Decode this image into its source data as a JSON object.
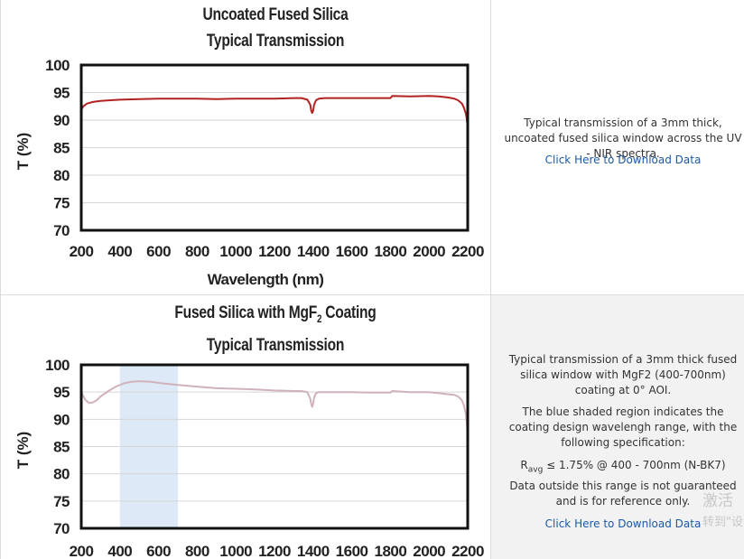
{
  "charts": [
    {
      "title_lines": [
        "Uncoated Fused Silica",
        "Typical Transmission"
      ],
      "description": "Typical transmission of a 3mm thick, uncoated fused silica window across the UV - NIR spectra.",
      "link_label": "Click Here to Download Data"
    },
    {
      "title_main": "Fused Silica with MgF",
      "title_sub": "2",
      "title_tail": " Coating",
      "title_line2": "Typical Transmission",
      "description_1": "Typical transmission of a 3mm thick fused silica window with MgF2 (400-700nm) coating at 0° AOI.",
      "description_2": "The blue shaded region indicates the coating design wavelengh range, with the following specification:",
      "spec_r": "R",
      "spec_sub": "avg",
      "spec_tail": " ≤ 1.75% @ 400 - 700nm (N-BK7)",
      "description_3": "Data outside this range is not guaranteed and is for reference only.",
      "link_label": "Click Here to Download Data"
    }
  ],
  "watermark": {
    "line1": "激活",
    "line2": "转到\"设"
  },
  "chart_data": [
    {
      "type": "line",
      "title": "Uncoated Fused Silica Typical Transmission",
      "xlabel": "Wavelength (nm)",
      "ylabel": "T (%)",
      "xlim": [
        200,
        2200
      ],
      "ylim": [
        70,
        100
      ],
      "xticks": [
        "200",
        "400",
        "600",
        "800",
        "1000",
        "1200",
        "1400",
        "1600",
        "1800",
        "2000",
        "2200"
      ],
      "yticks": [
        "70",
        "75",
        "80",
        "85",
        "90",
        "95",
        "100"
      ],
      "grid": true,
      "line_color": "#b22222",
      "series": [
        {
          "x": [
            200,
            210,
            230,
            260,
            300,
            350,
            400,
            500,
            600,
            700,
            800,
            900,
            1000,
            1100,
            1200,
            1300,
            1340,
            1370,
            1385,
            1390,
            1395,
            1400,
            1405,
            1415,
            1430,
            1460,
            1500,
            1600,
            1700,
            1800,
            1810,
            1900,
            2000,
            2050,
            2100,
            2130,
            2150,
            2170,
            2180,
            2190,
            2195,
            2200
          ],
          "y": [
            91.8,
            92.5,
            93.0,
            93.3,
            93.5,
            93.6,
            93.7,
            93.8,
            93.9,
            93.9,
            93.9,
            93.8,
            93.9,
            93.9,
            93.9,
            94.0,
            94.0,
            93.7,
            92.8,
            91.7,
            91.3,
            91.7,
            92.8,
            93.6,
            93.9,
            94.0,
            94.0,
            94.0,
            94.0,
            94.0,
            94.4,
            94.3,
            94.4,
            94.3,
            94.1,
            93.9,
            93.6,
            93.0,
            92.3,
            91.2,
            90.3,
            88.5
          ]
        }
      ]
    },
    {
      "type": "line",
      "title": "Fused Silica with MgF2 Coating Typical Transmission",
      "xlabel": "",
      "ylabel": "T (%)",
      "xlim": [
        200,
        2200
      ],
      "ylim": [
        70,
        100
      ],
      "xticks": [
        "200",
        "400",
        "600",
        "800",
        "1000",
        "1200",
        "1400",
        "1600",
        "1800",
        "2000",
        "2200"
      ],
      "yticks": [
        "70",
        "75",
        "80",
        "85",
        "90",
        "95",
        "100"
      ],
      "grid": true,
      "shaded_region": [
        400,
        700
      ],
      "shade_color": "#dde9f6",
      "line_color": "#d0b2bc",
      "series": [
        {
          "x": [
            200,
            220,
            240,
            260,
            280,
            300,
            340,
            380,
            420,
            460,
            500,
            560,
            620,
            700,
            800,
            900,
            1000,
            1100,
            1200,
            1300,
            1340,
            1370,
            1385,
            1390,
            1395,
            1400,
            1405,
            1415,
            1430,
            1460,
            1500,
            1600,
            1700,
            1800,
            1810,
            1900,
            2000,
            2050,
            2100,
            2130,
            2150,
            2170,
            2180,
            2190,
            2195,
            2200
          ],
          "y": [
            95.0,
            93.6,
            93.0,
            93.1,
            93.5,
            94.2,
            95.2,
            96.0,
            96.6,
            96.9,
            97.0,
            96.9,
            96.6,
            96.3,
            96.0,
            95.7,
            95.6,
            95.5,
            95.3,
            95.2,
            95.2,
            95.0,
            93.8,
            92.8,
            92.3,
            92.8,
            94.0,
            94.8,
            95.0,
            95.0,
            95.0,
            95.0,
            94.9,
            94.9,
            95.2,
            95.0,
            95.0,
            94.8,
            94.6,
            94.5,
            94.2,
            93.5,
            92.6,
            91.0,
            89.5,
            87.0
          ]
        }
      ]
    }
  ]
}
